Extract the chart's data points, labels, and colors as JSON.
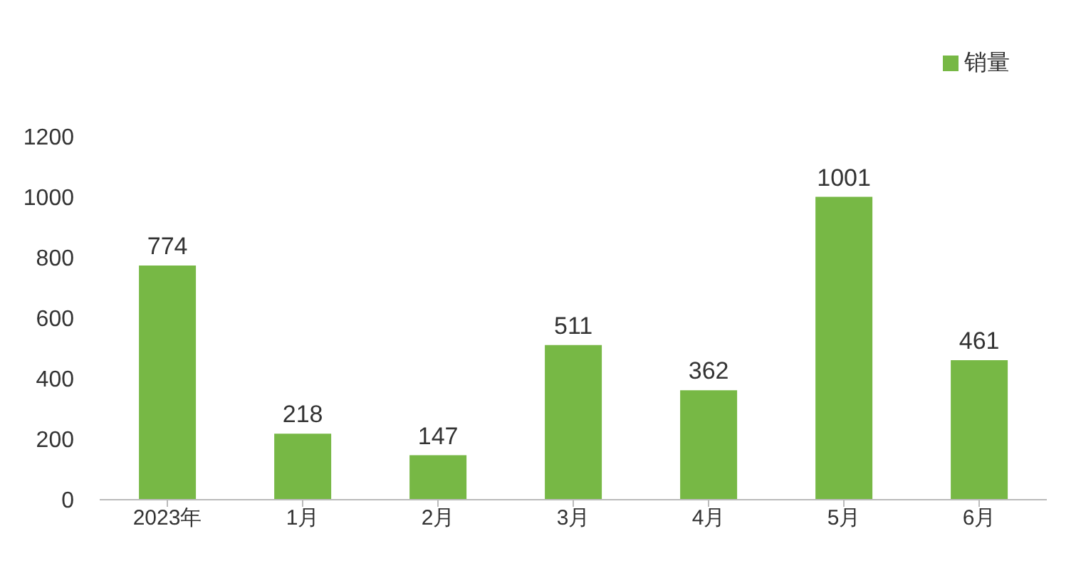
{
  "chart_data": {
    "type": "bar",
    "categories": [
      "2023年",
      "1月",
      "2月",
      "3月",
      "4月",
      "5月",
      "6月"
    ],
    "series": [
      {
        "name": "销量",
        "color": "#77b845",
        "values": [
          774,
          218,
          147,
          511,
          362,
          1001,
          461
        ]
      }
    ],
    "ylim": [
      0,
      1200
    ],
    "yticks": [
      0,
      200,
      400,
      600,
      800,
      1000,
      1200
    ],
    "grid": false,
    "legend": "top right",
    "data_labels": true
  }
}
